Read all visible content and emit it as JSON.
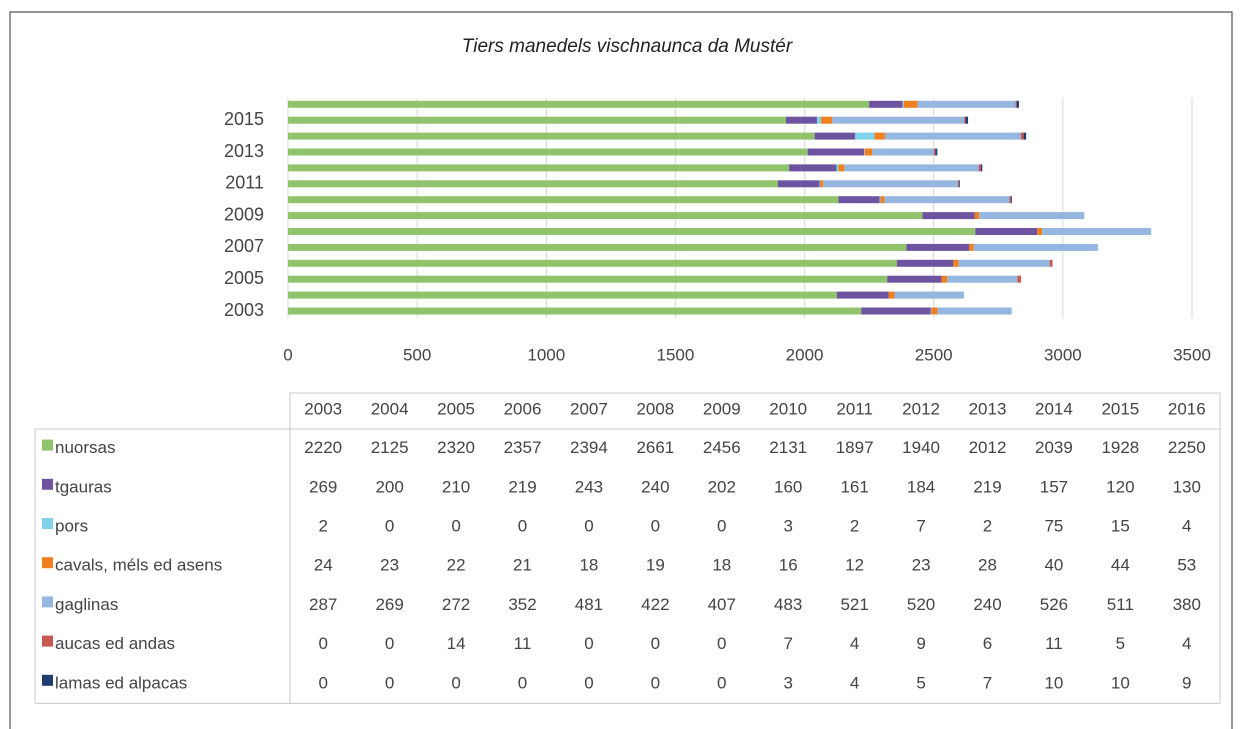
{
  "chart_data": {
    "type": "hbar_stacked",
    "title": "Tiers manedels vischnaunca da Mustér",
    "categories": [
      "2003",
      "2004",
      "2005",
      "2006",
      "2007",
      "2008",
      "2009",
      "2010",
      "2011",
      "2012",
      "2013",
      "2014",
      "2015",
      "2016"
    ],
    "series": [
      {
        "name": "nuorsas",
        "color": "#8fc46d",
        "values": [
          2220,
          2125,
          2320,
          2357,
          2394,
          2661,
          2456,
          2131,
          1897,
          1940,
          2012,
          2039,
          1928,
          2250
        ]
      },
      {
        "name": "tgauras",
        "color": "#6e54a0",
        "values": [
          269,
          200,
          210,
          219,
          243,
          240,
          202,
          160,
          161,
          184,
          219,
          157,
          120,
          130
        ]
      },
      {
        "name": "pors",
        "color": "#80d2ea",
        "values": [
          2,
          0,
          0,
          0,
          0,
          0,
          0,
          3,
          2,
          7,
          2,
          75,
          15,
          4
        ]
      },
      {
        "name": "cavals, méls ed asens",
        "color": "#f0801f",
        "values": [
          24,
          23,
          22,
          21,
          18,
          19,
          18,
          16,
          12,
          23,
          28,
          40,
          44,
          53
        ]
      },
      {
        "name": "gaglinas",
        "color": "#95b6df",
        "values": [
          287,
          269,
          272,
          352,
          481,
          422,
          407,
          483,
          521,
          520,
          240,
          526,
          511,
          380
        ]
      },
      {
        "name": "aucas ed andas",
        "color": "#c65a52",
        "values": [
          0,
          0,
          14,
          11,
          0,
          0,
          0,
          7,
          4,
          9,
          6,
          11,
          5,
          4
        ]
      },
      {
        "name": "lamas ed alpacas",
        "color": "#1f3d6e",
        "values": [
          0,
          0,
          0,
          0,
          0,
          0,
          0,
          3,
          4,
          5,
          7,
          10,
          10,
          9
        ]
      }
    ],
    "xlim": [
      0,
      3500
    ],
    "xticks": [
      0,
      500,
      1000,
      1500,
      2000,
      2500,
      3000,
      3500
    ],
    "grid": true
  }
}
